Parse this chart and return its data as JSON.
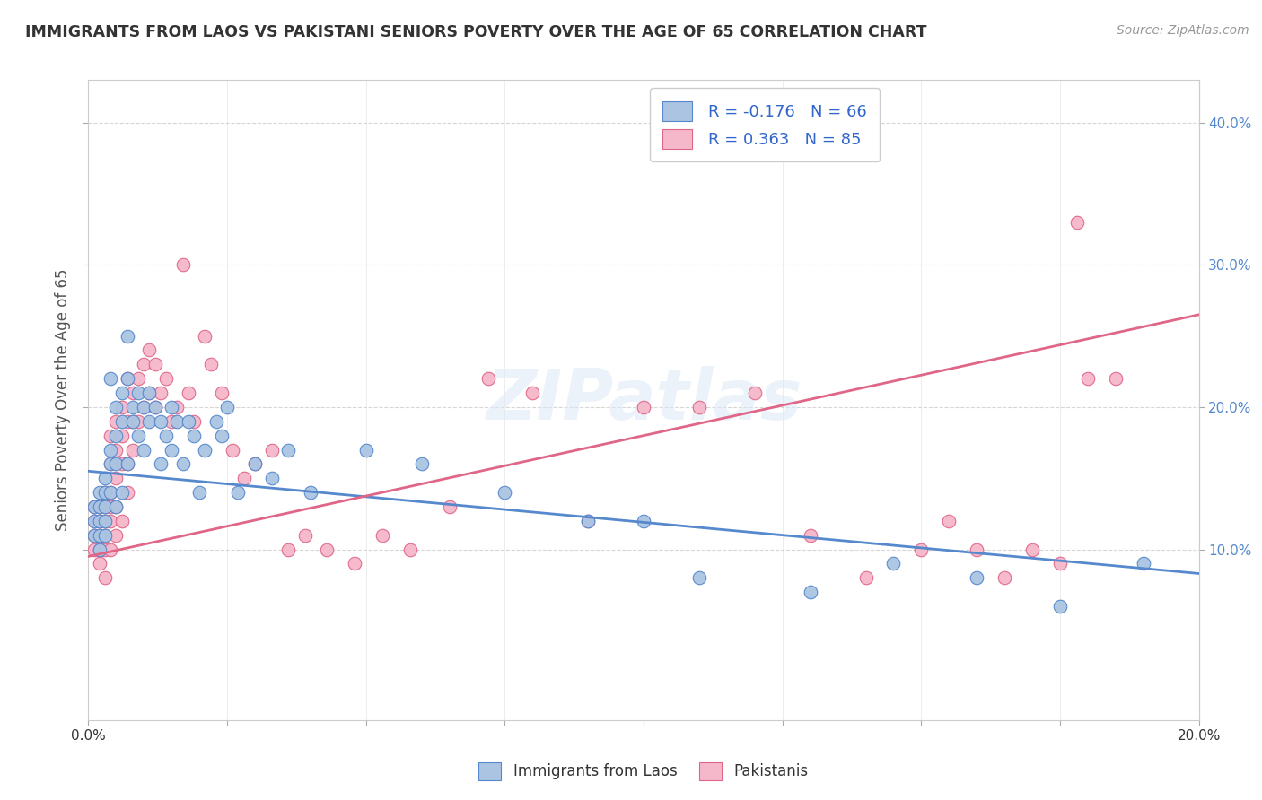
{
  "title": "IMMIGRANTS FROM LAOS VS PAKISTANI SENIORS POVERTY OVER THE AGE OF 65 CORRELATION CHART",
  "source": "Source: ZipAtlas.com",
  "ylabel": "Seniors Poverty Over the Age of 65",
  "xlim": [
    0.0,
    0.2
  ],
  "ylim": [
    -0.02,
    0.43
  ],
  "yticks": [
    0.1,
    0.2,
    0.3,
    0.4
  ],
  "xticks": [
    0.0,
    0.025,
    0.05,
    0.075,
    0.1,
    0.125,
    0.15,
    0.175,
    0.2
  ],
  "laos_color": "#aac4e2",
  "laos_edge_color": "#5588cc",
  "pak_color": "#f5b8cb",
  "pak_edge_color": "#e06688",
  "laos_line_color": "#5588cc",
  "pak_line_color": "#e06688",
  "laos_R": -0.176,
  "laos_N": 66,
  "pak_R": 0.363,
  "pak_N": 85,
  "legend_label_laos": "Immigrants from Laos",
  "legend_label_pak": "Pakistanis",
  "background_color": "#ffffff",
  "grid_color": "#cccccc",
  "title_color": "#333333",
  "laos_line_y0": 0.155,
  "laos_line_y1": 0.083,
  "pak_line_y0": 0.095,
  "pak_line_y1": 0.265,
  "laos_scatter_x": [
    0.001,
    0.001,
    0.001,
    0.002,
    0.002,
    0.002,
    0.002,
    0.002,
    0.003,
    0.003,
    0.003,
    0.003,
    0.003,
    0.004,
    0.004,
    0.004,
    0.004,
    0.005,
    0.005,
    0.005,
    0.005,
    0.006,
    0.006,
    0.006,
    0.007,
    0.007,
    0.007,
    0.008,
    0.008,
    0.009,
    0.009,
    0.01,
    0.01,
    0.011,
    0.011,
    0.012,
    0.013,
    0.013,
    0.014,
    0.015,
    0.015,
    0.016,
    0.017,
    0.018,
    0.019,
    0.02,
    0.021,
    0.023,
    0.024,
    0.025,
    0.027,
    0.03,
    0.033,
    0.036,
    0.04,
    0.05,
    0.06,
    0.075,
    0.09,
    0.1,
    0.11,
    0.13,
    0.145,
    0.16,
    0.175,
    0.19
  ],
  "laos_scatter_y": [
    0.13,
    0.12,
    0.11,
    0.14,
    0.13,
    0.12,
    0.11,
    0.1,
    0.15,
    0.14,
    0.13,
    0.12,
    0.11,
    0.22,
    0.17,
    0.16,
    0.14,
    0.2,
    0.18,
    0.16,
    0.13,
    0.21,
    0.19,
    0.14,
    0.25,
    0.22,
    0.16,
    0.2,
    0.19,
    0.21,
    0.18,
    0.2,
    0.17,
    0.21,
    0.19,
    0.2,
    0.19,
    0.16,
    0.18,
    0.2,
    0.17,
    0.19,
    0.16,
    0.19,
    0.18,
    0.14,
    0.17,
    0.19,
    0.18,
    0.2,
    0.14,
    0.16,
    0.15,
    0.17,
    0.14,
    0.17,
    0.16,
    0.14,
    0.12,
    0.12,
    0.08,
    0.07,
    0.09,
    0.08,
    0.06,
    0.09
  ],
  "pak_scatter_x": [
    0.001,
    0.001,
    0.001,
    0.001,
    0.002,
    0.002,
    0.002,
    0.002,
    0.002,
    0.002,
    0.002,
    0.003,
    0.003,
    0.003,
    0.003,
    0.003,
    0.003,
    0.004,
    0.004,
    0.004,
    0.004,
    0.004,
    0.004,
    0.005,
    0.005,
    0.005,
    0.005,
    0.005,
    0.006,
    0.006,
    0.006,
    0.006,
    0.007,
    0.007,
    0.007,
    0.007,
    0.008,
    0.008,
    0.008,
    0.009,
    0.009,
    0.01,
    0.01,
    0.011,
    0.011,
    0.012,
    0.012,
    0.013,
    0.014,
    0.015,
    0.016,
    0.017,
    0.018,
    0.019,
    0.021,
    0.022,
    0.024,
    0.026,
    0.028,
    0.03,
    0.033,
    0.036,
    0.039,
    0.043,
    0.048,
    0.053,
    0.058,
    0.065,
    0.072,
    0.08,
    0.09,
    0.1,
    0.11,
    0.12,
    0.13,
    0.14,
    0.15,
    0.155,
    0.16,
    0.165,
    0.17,
    0.175,
    0.178,
    0.18,
    0.185
  ],
  "pak_scatter_y": [
    0.13,
    0.12,
    0.11,
    0.1,
    0.13,
    0.12,
    0.11,
    0.1,
    0.09,
    0.13,
    0.12,
    0.14,
    0.13,
    0.12,
    0.11,
    0.1,
    0.08,
    0.18,
    0.16,
    0.14,
    0.13,
    0.12,
    0.1,
    0.19,
    0.17,
    0.15,
    0.13,
    0.11,
    0.2,
    0.18,
    0.16,
    0.12,
    0.22,
    0.19,
    0.16,
    0.14,
    0.21,
    0.19,
    0.17,
    0.22,
    0.19,
    0.23,
    0.2,
    0.24,
    0.21,
    0.23,
    0.2,
    0.21,
    0.22,
    0.19,
    0.2,
    0.3,
    0.21,
    0.19,
    0.25,
    0.23,
    0.21,
    0.17,
    0.15,
    0.16,
    0.17,
    0.1,
    0.11,
    0.1,
    0.09,
    0.11,
    0.1,
    0.13,
    0.22,
    0.21,
    0.12,
    0.2,
    0.2,
    0.21,
    0.11,
    0.08,
    0.1,
    0.12,
    0.1,
    0.08,
    0.1,
    0.09,
    0.33,
    0.22,
    0.22
  ]
}
